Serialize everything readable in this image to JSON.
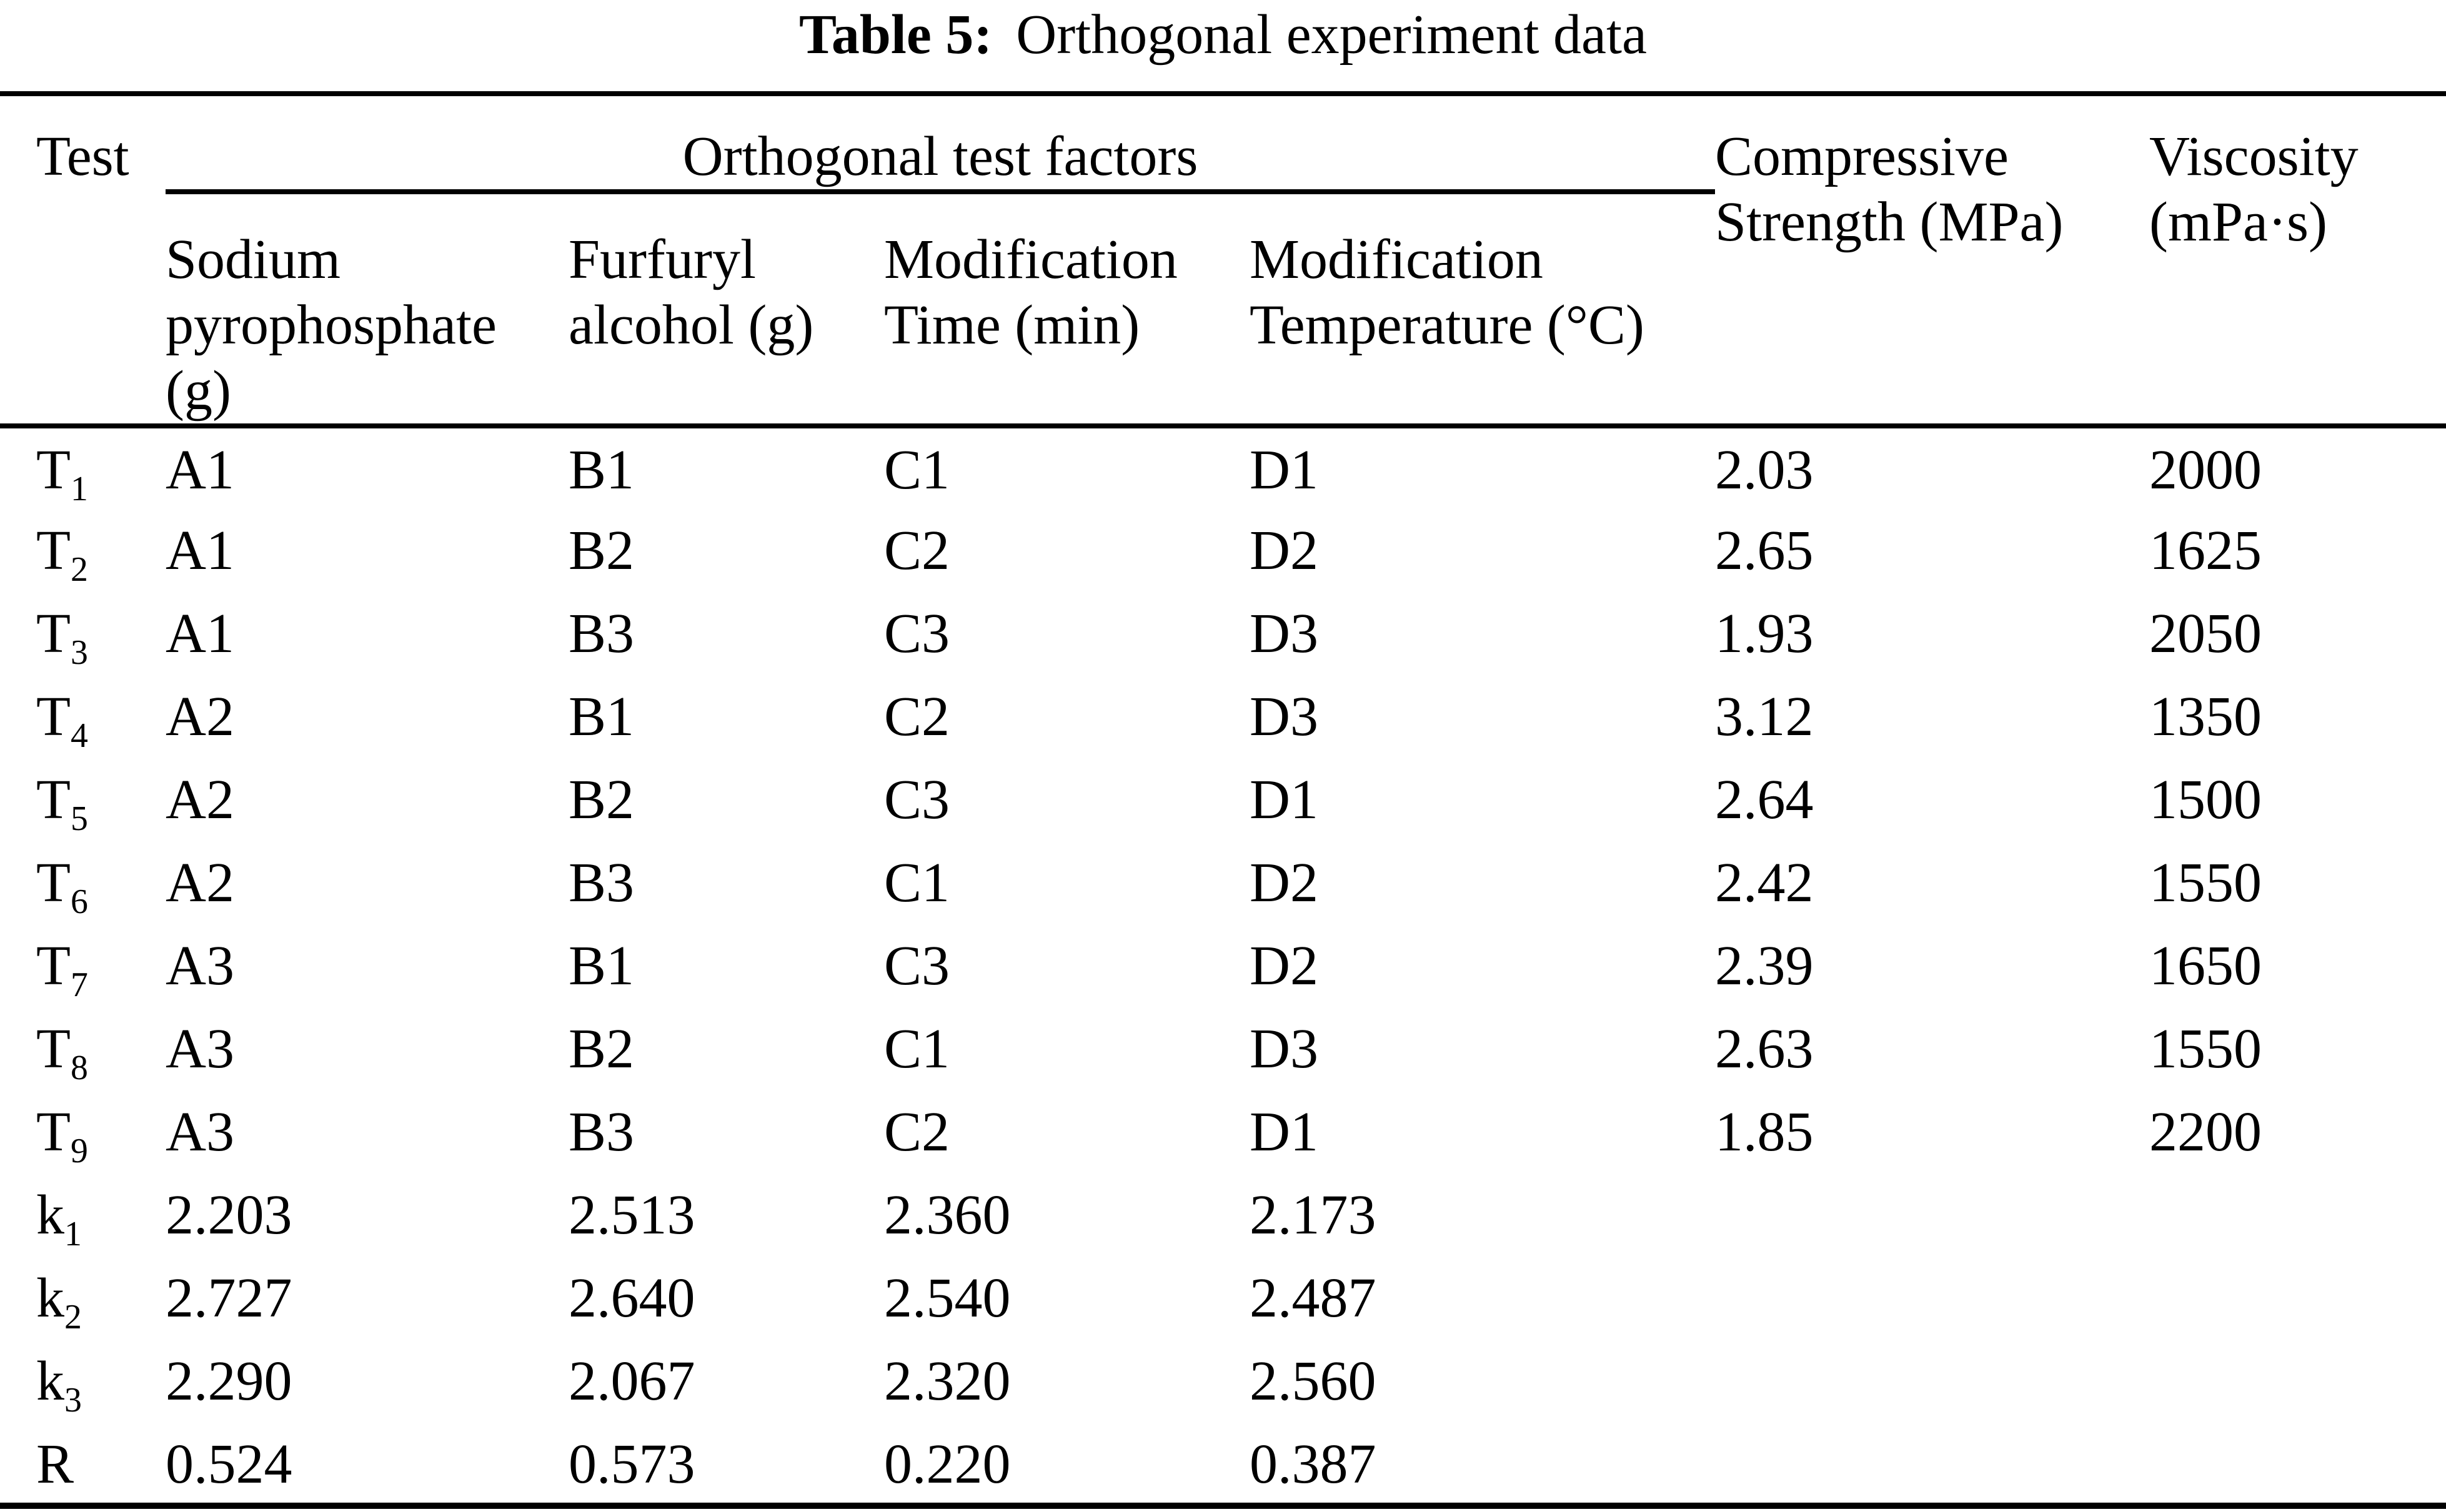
{
  "colors": {
    "text": "#000000",
    "background": "#ffffff"
  },
  "title": {
    "label": "Table 5:",
    "text": "Orthogonal experiment data"
  },
  "table": {
    "header": {
      "test": "Test",
      "group": "Orthogonal test factors",
      "compressive": "Compressive\nStrength (MPa)",
      "viscosity": "Viscosity\n(mPa·s)",
      "factors": [
        "Sodium\npyrophosphate\n(g)",
        "Furfuryl\nalcohol (g)",
        "Modification\nTime (min)",
        "Modification\nTemperature (°C)"
      ]
    },
    "rows": [
      {
        "label": "T",
        "sub": "1",
        "cells": [
          "A1",
          "B1",
          "C1",
          "D1",
          "2.03",
          "2000"
        ]
      },
      {
        "label": "T",
        "sub": "2",
        "cells": [
          "A1",
          "B2",
          "C2",
          "D2",
          "2.65",
          "1625"
        ]
      },
      {
        "label": "T",
        "sub": "3",
        "cells": [
          "A1",
          "B3",
          "C3",
          "D3",
          "1.93",
          "2050"
        ]
      },
      {
        "label": "T",
        "sub": "4",
        "cells": [
          "A2",
          "B1",
          "C2",
          "D3",
          "3.12",
          "1350"
        ]
      },
      {
        "label": "T",
        "sub": "5",
        "cells": [
          "A2",
          "B2",
          "C3",
          "D1",
          "2.64",
          "1500"
        ]
      },
      {
        "label": "T",
        "sub": "6",
        "cells": [
          "A2",
          "B3",
          "C1",
          "D2",
          "2.42",
          "1550"
        ]
      },
      {
        "label": "T",
        "sub": "7",
        "cells": [
          "A3",
          "B1",
          "C3",
          "D2",
          "2.39",
          "1650"
        ]
      },
      {
        "label": "T",
        "sub": "8",
        "cells": [
          "A3",
          "B2",
          "C1",
          "D3",
          "2.63",
          "1550"
        ]
      },
      {
        "label": "T",
        "sub": "9",
        "cells": [
          "A3",
          "B3",
          "C2",
          "D1",
          "1.85",
          "2200"
        ]
      },
      {
        "label": "k",
        "sub": "1",
        "cells": [
          "2.203",
          "2.513",
          "2.360",
          "2.173",
          "",
          ""
        ]
      },
      {
        "label": "k",
        "sub": "2",
        "cells": [
          "2.727",
          "2.640",
          "2.540",
          "2.487",
          "",
          ""
        ]
      },
      {
        "label": "k",
        "sub": "3",
        "cells": [
          "2.290",
          "2.067",
          "2.320",
          "2.560",
          "",
          ""
        ]
      },
      {
        "label": "R",
        "sub": "",
        "cells": [
          "0.524",
          "0.573",
          "0.220",
          "0.387",
          "",
          ""
        ]
      }
    ]
  }
}
